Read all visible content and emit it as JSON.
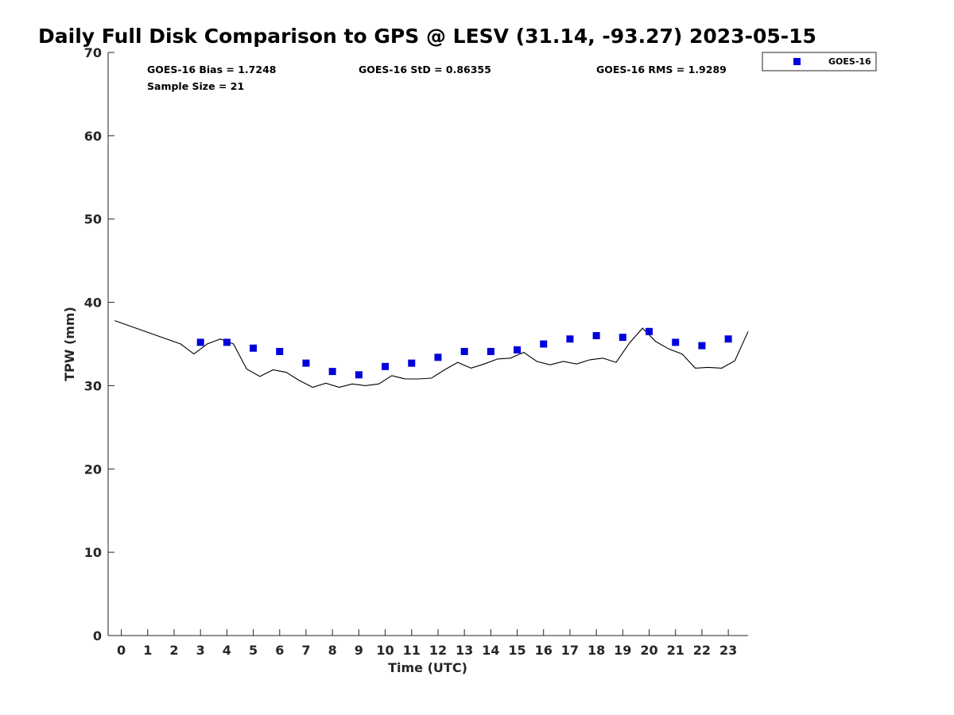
{
  "chart_data": {
    "type": "scatter",
    "title": "Daily Full Disk Comparison to GPS @ LESV (31.14, -93.27) 2023-05-15",
    "xlabel": "Time (UTC)",
    "ylabel": "TPW (mm)",
    "xlim": [
      -0.5,
      23.75
    ],
    "ylim": [
      0,
      70
    ],
    "x_ticks": [
      0,
      1,
      2,
      3,
      4,
      5,
      6,
      7,
      8,
      9,
      10,
      11,
      12,
      13,
      14,
      15,
      16,
      17,
      18,
      19,
      20,
      21,
      22,
      23
    ],
    "y_ticks": [
      0,
      10,
      20,
      30,
      40,
      50,
      60,
      70
    ],
    "grid": false,
    "legend_position": "top-right (outside plot)",
    "stats": {
      "bias": "GOES-16 Bias = 1.7248",
      "std": "GOES-16 StD = 0.86355",
      "rms": "GOES-16 RMS = 1.9289",
      "sample": "Sample Size = 21"
    },
    "series": [
      {
        "name": "GOES-16",
        "kind": "scatter",
        "marker": "square",
        "color": "#0000dd",
        "x": [
          3,
          4,
          5,
          6,
          7,
          8,
          9,
          10,
          11,
          12,
          13,
          14,
          15,
          16,
          17,
          18,
          19,
          20,
          21,
          22,
          23
        ],
        "y": [
          35.2,
          35.2,
          34.5,
          34.1,
          32.7,
          31.7,
          31.3,
          32.3,
          32.7,
          33.4,
          34.1,
          34.1,
          34.3,
          35.0,
          35.6,
          36.0,
          35.8,
          36.5,
          35.2,
          34.8,
          35.6
        ]
      },
      {
        "kind": "line",
        "color": "#000000",
        "x": [
          -0.25,
          2.25,
          2.75,
          3.25,
          3.75,
          4.25,
          4.75,
          5.25,
          5.75,
          6.25,
          6.75,
          7.25,
          7.75,
          8.25,
          8.75,
          9.25,
          9.75,
          10.25,
          10.75,
          11.25,
          11.75,
          12.25,
          12.75,
          13.25,
          13.75,
          14.25,
          14.75,
          15.25,
          15.75,
          16.25,
          16.75,
          17.25,
          17.75,
          18.25,
          18.75,
          19.25,
          19.75,
          20.25,
          20.75,
          21.25,
          21.75,
          22.25,
          22.75,
          23.25,
          23.75
        ],
        "y": [
          37.8,
          35.0,
          33.8,
          35.0,
          35.6,
          35.0,
          32.0,
          31.1,
          31.9,
          31.6,
          30.6,
          29.8,
          30.3,
          29.8,
          30.2,
          30.0,
          30.2,
          31.2,
          30.8,
          30.8,
          30.9,
          31.9,
          32.8,
          32.1,
          32.6,
          33.2,
          33.3,
          34.0,
          32.9,
          32.5,
          32.9,
          32.6,
          33.1,
          33.3,
          32.8,
          35.1,
          36.9,
          35.3,
          34.4,
          33.8,
          32.1,
          32.2,
          32.1,
          33.0,
          36.5
        ]
      }
    ]
  }
}
